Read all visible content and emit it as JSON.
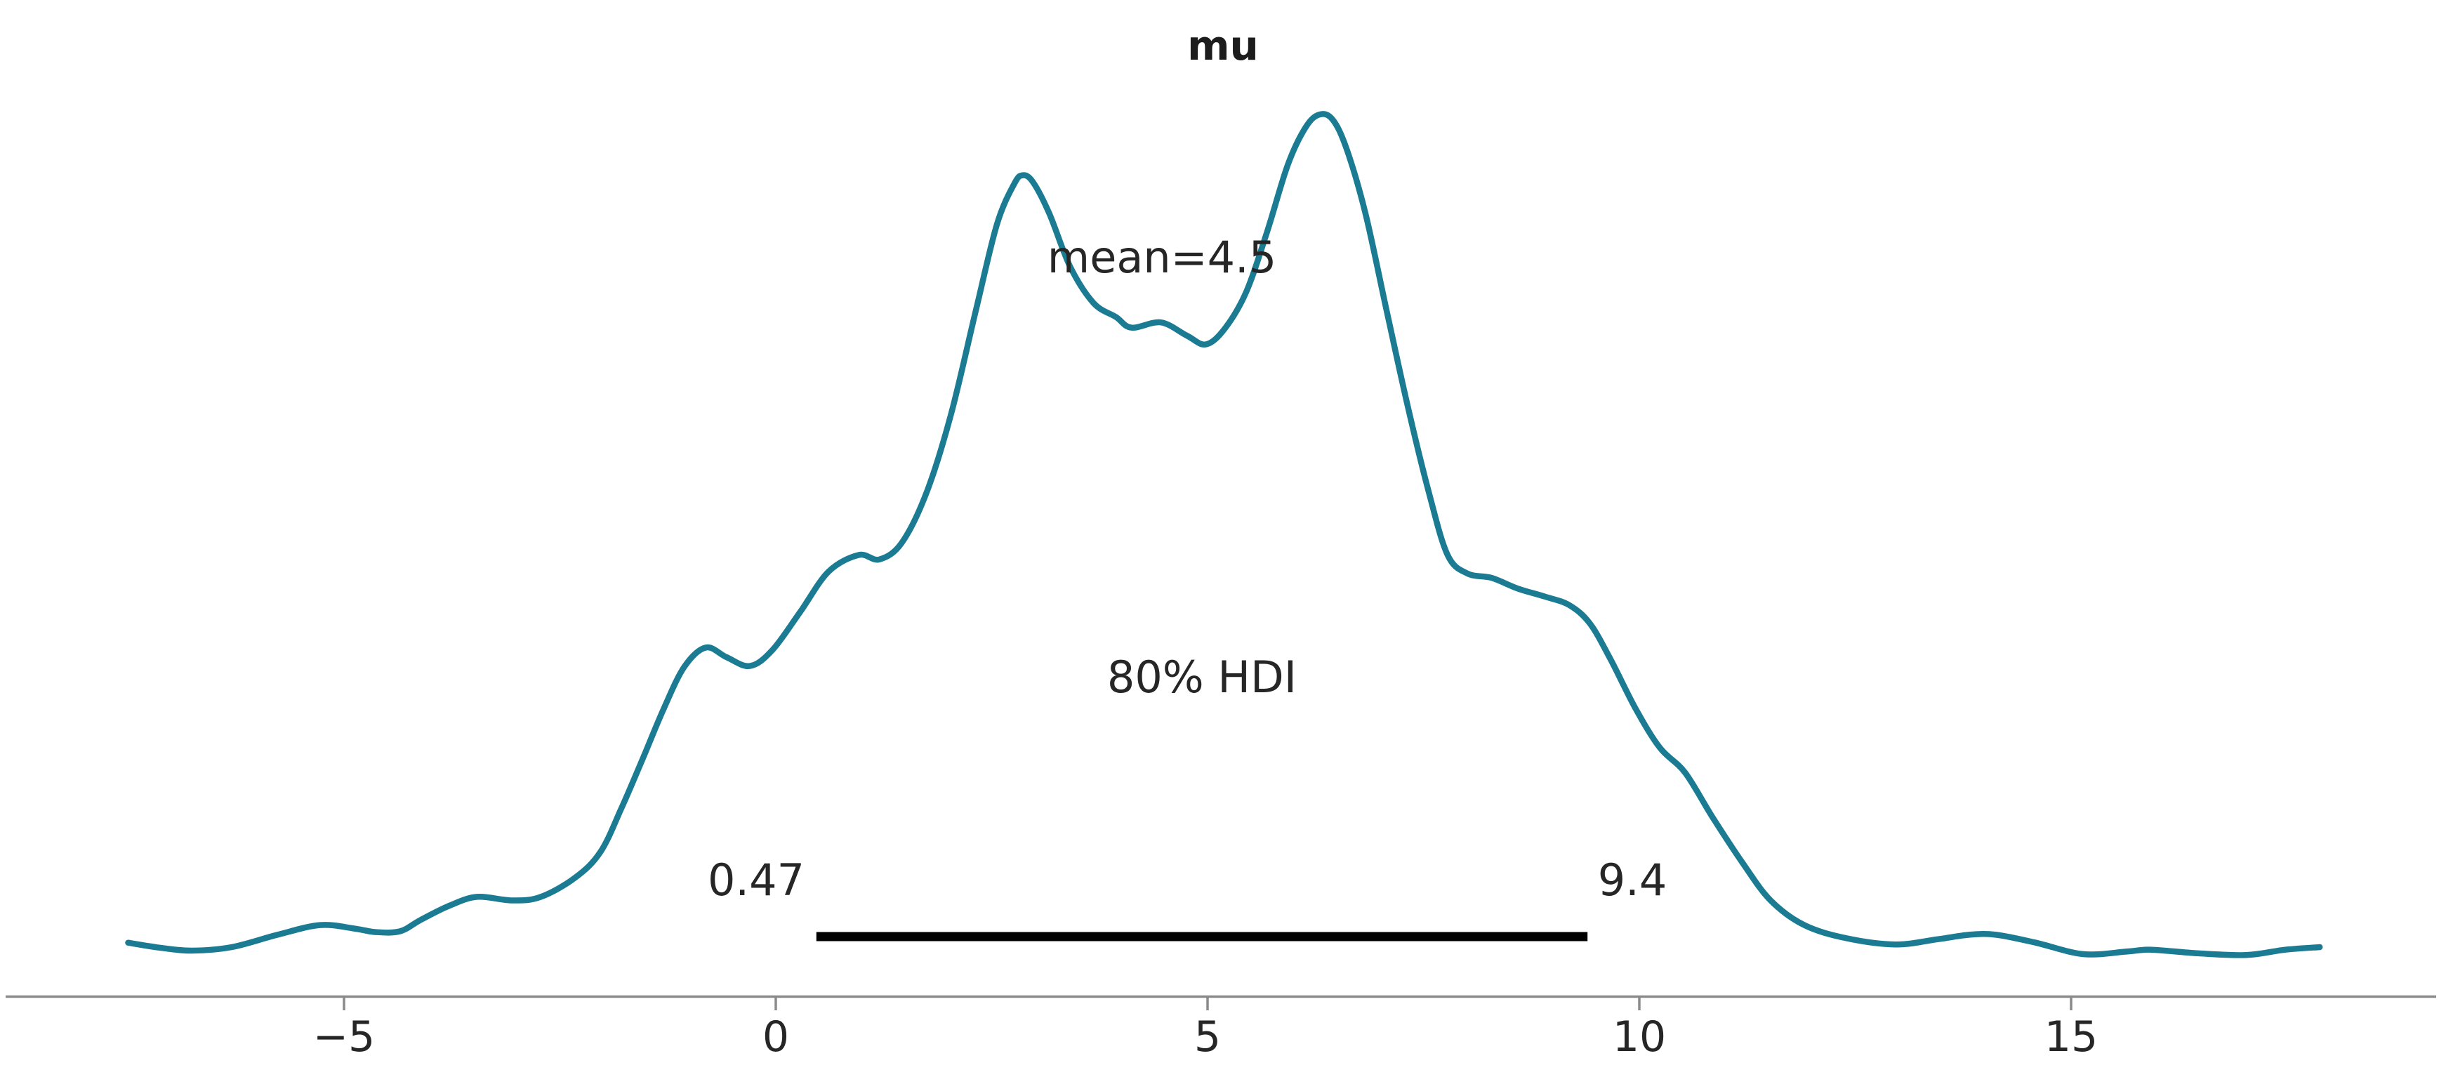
{
  "title": "mu",
  "colors": {
    "kde_line": "#1a7b93",
    "hdi_bar": "#000000",
    "axis_spine": "#8a8a8a",
    "text": "#262626",
    "background": "#ffffff"
  },
  "chart_data": {
    "type": "line",
    "subtype": "kde-posterior",
    "title": "mu",
    "xlabel": "",
    "ylabel": "",
    "grid": false,
    "legend": false,
    "xlim": [
      -8.9,
      19.3
    ],
    "x_ticks": [
      -5,
      0,
      5,
      10,
      15
    ],
    "x_tick_labels": [
      "−5",
      "0",
      "5",
      "10",
      "15"
    ],
    "annotations": {
      "mean_label": "mean=4.5",
      "mean_value": 4.5,
      "hdi_label": "80% HDI",
      "hdi_lower": 0.47,
      "hdi_upper": 9.4,
      "hdi_lower_label": "0.47",
      "hdi_upper_label": "9.4"
    },
    "kde": {
      "x": [
        -7.5,
        -7.11,
        -6.76,
        -6.3,
        -5.77,
        -5.28,
        -4.88,
        -4.63,
        -4.35,
        -4.11,
        -3.78,
        -3.46,
        -3.05,
        -2.72,
        -2.32,
        -2.03,
        -1.79,
        -1.54,
        -1.3,
        -1.06,
        -0.81,
        -0.57,
        -0.3,
        -0.04,
        0.28,
        0.61,
        0.96,
        1.2,
        1.46,
        1.75,
        2.03,
        2.32,
        2.56,
        2.76,
        2.86,
        2.98,
        3.17,
        3.41,
        3.68,
        3.94,
        4.12,
        4.46,
        4.76,
        4.98,
        5.2,
        5.45,
        5.69,
        5.93,
        6.14,
        6.3,
        6.45,
        6.61,
        6.83,
        7.07,
        7.32,
        7.56,
        7.78,
        8.01,
        8.29,
        8.59,
        8.9,
        9.19,
        9.43,
        9.67,
        9.96,
        10.24,
        10.53,
        10.85,
        11.2,
        11.52,
        11.91,
        12.4,
        12.97,
        13.46,
        13.82,
        14.13,
        14.59,
        15.14,
        15.65,
        15.93,
        16.46,
        17.03,
        17.48,
        17.88
      ],
      "density": [
        0.06,
        0.054,
        0.051,
        0.055,
        0.069,
        0.08,
        0.076,
        0.072,
        0.073,
        0.086,
        0.102,
        0.112,
        0.108,
        0.112,
        0.134,
        0.163,
        0.212,
        0.269,
        0.325,
        0.373,
        0.395,
        0.384,
        0.374,
        0.392,
        0.435,
        0.481,
        0.5,
        0.495,
        0.514,
        0.572,
        0.66,
        0.779,
        0.875,
        0.921,
        0.931,
        0.923,
        0.887,
        0.827,
        0.786,
        0.77,
        0.758,
        0.764,
        0.749,
        0.739,
        0.757,
        0.799,
        0.867,
        0.943,
        0.986,
        1.0,
        0.994,
        0.961,
        0.887,
        0.779,
        0.668,
        0.572,
        0.5,
        0.479,
        0.474,
        0.462,
        0.453,
        0.443,
        0.422,
        0.381,
        0.325,
        0.281,
        0.253,
        0.202,
        0.15,
        0.108,
        0.08,
        0.065,
        0.058,
        0.064,
        0.069,
        0.069,
        0.06,
        0.047,
        0.05,
        0.052,
        0.048,
        0.046,
        0.052,
        0.055
      ]
    }
  }
}
